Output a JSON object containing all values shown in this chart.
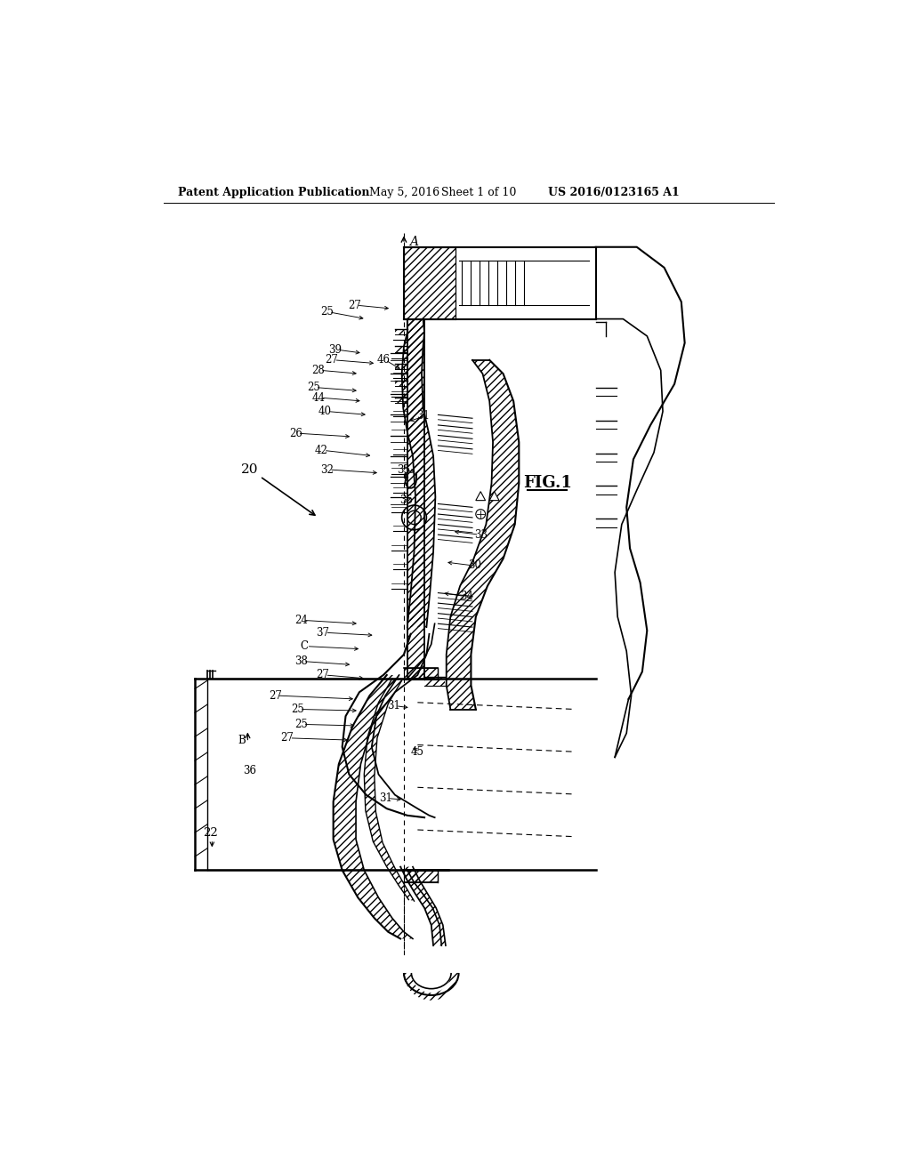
{
  "bg_color": "#ffffff",
  "header_text": "Patent Application Publication",
  "header_date": "May 5, 2016",
  "header_sheet": "Sheet 1 of 10",
  "header_patent": "US 2016/0123165 A1",
  "fig_label": "FIG.1"
}
